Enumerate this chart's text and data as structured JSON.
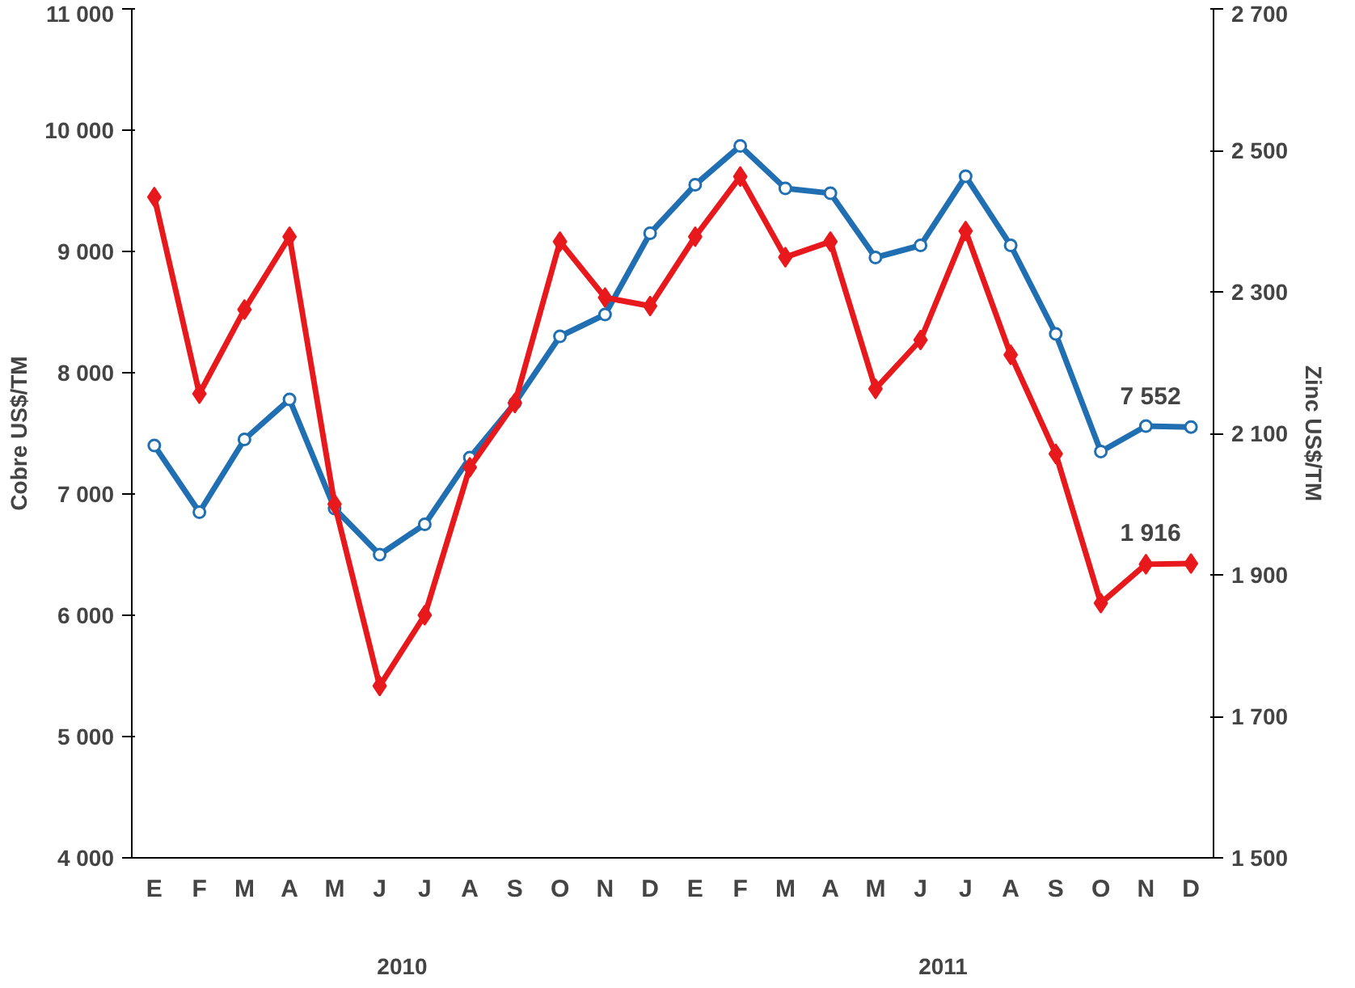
{
  "chart_data": {
    "type": "line",
    "ylabel": "Cobre US$/TM",
    "y2label": "Zinc US$/TM",
    "categories": [
      "E",
      "F",
      "M",
      "A",
      "M",
      "J",
      "J",
      "A",
      "S",
      "O",
      "N",
      "D",
      "E",
      "F",
      "M",
      "A",
      "M",
      "J",
      "J",
      "A",
      "S",
      "O",
      "N",
      "D"
    ],
    "annotations": [
      "2010",
      "2011"
    ],
    "ylim": [
      4000,
      11000
    ],
    "yticks": [
      {
        "value": 4000,
        "label": "4 000"
      },
      {
        "value": 5000,
        "label": "5 000"
      },
      {
        "value": 6000,
        "label": "6 000"
      },
      {
        "value": 7000,
        "label": "7 000"
      },
      {
        "value": 8000,
        "label": "8 000"
      },
      {
        "value": 9000,
        "label": "9 000"
      },
      {
        "value": 10000,
        "label": "10 000"
      },
      {
        "value": 11000,
        "label": "11 000"
      }
    ],
    "y2lim": [
      1500,
      2700
    ],
    "y2ticks": [
      {
        "value": 1500,
        "label": "1 500"
      },
      {
        "value": 1700,
        "label": "1 700"
      },
      {
        "value": 1900,
        "label": "1 900"
      },
      {
        "value": 2100,
        "label": "2 100"
      },
      {
        "value": 2300,
        "label": "2 300"
      },
      {
        "value": 2500,
        "label": "2 500"
      },
      {
        "value": 2700,
        "label": "2 700"
      }
    ],
    "grid": false,
    "line_style": "solid",
    "series": [
      {
        "color": "#1f6fb2",
        "marker": "circle",
        "values": [
          7400,
          6850,
          7450,
          7780,
          6880,
          6500,
          6750,
          7300,
          7750,
          8300,
          8480,
          9150,
          9550,
          9870,
          9520,
          9480,
          8950,
          9050,
          9620,
          9050,
          8320,
          7350,
          7560,
          7552
        ],
        "value_labels": [
          null,
          null,
          null,
          null,
          null,
          null,
          null,
          null,
          null,
          null,
          null,
          null,
          null,
          null,
          null,
          null,
          null,
          null,
          null,
          null,
          null,
          null,
          null,
          "7 552"
        ]
      },
      {
        "color": "#e8191c",
        "marker": "diamond",
        "axis": "y2",
        "values": [
          2434,
          2156,
          2275,
          2378,
          2000,
          1743,
          1843,
          2052,
          2143,
          2371,
          2292,
          2280,
          2378,
          2463,
          2349,
          2371,
          2163,
          2232,
          2386,
          2211,
          2071,
          1860,
          1915,
          1916
        ],
        "value_labels": [
          null,
          null,
          null,
          null,
          null,
          null,
          null,
          null,
          null,
          null,
          null,
          null,
          null,
          null,
          null,
          null,
          null,
          null,
          null,
          null,
          null,
          null,
          null,
          "1 916"
        ]
      }
    ]
  }
}
